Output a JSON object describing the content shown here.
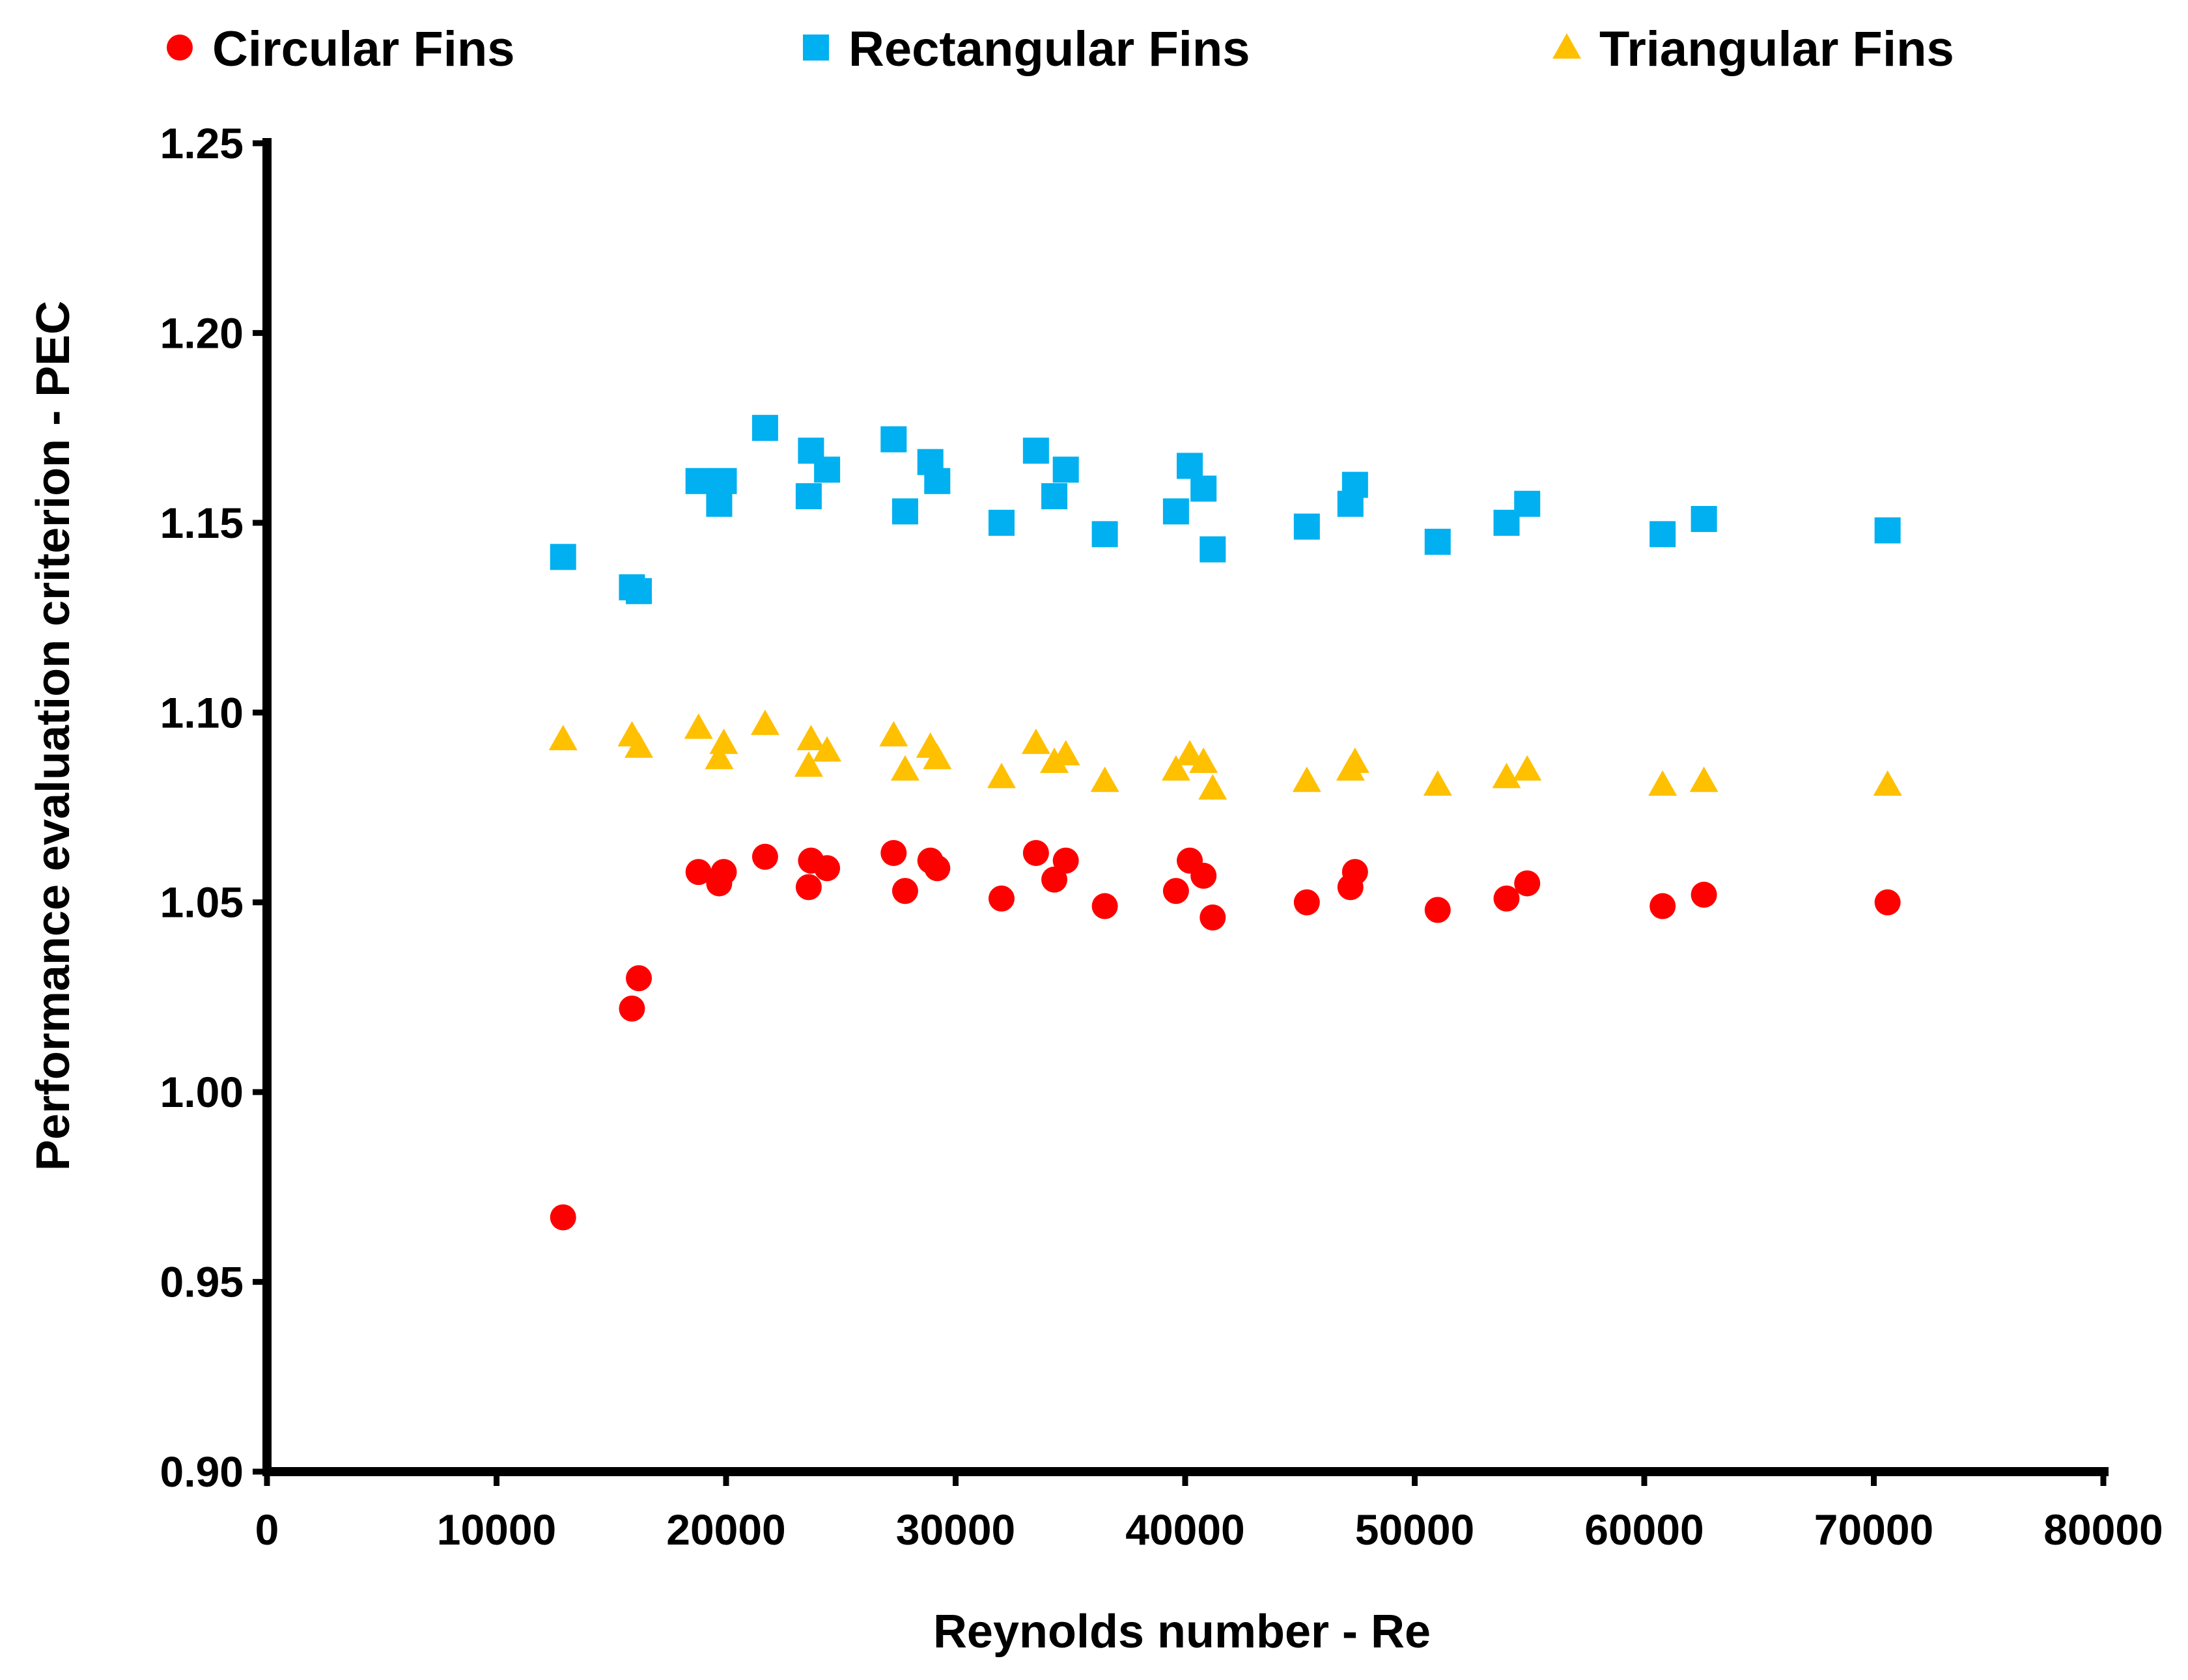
{
  "chart_data": {
    "type": "scatter",
    "title": "",
    "xlabel": "Reynolds number - Re",
    "ylabel": "Performance evaluation criterion - PEC",
    "xlim": [
      0,
      80000
    ],
    "ylim": [
      0.9,
      1.25
    ],
    "xticks": [
      0,
      10000,
      20000,
      30000,
      40000,
      50000,
      60000,
      70000,
      80000
    ],
    "xtick_labels": [
      "0",
      "10000",
      "20000",
      "30000",
      "40000",
      "50000",
      "60000",
      "70000",
      "80000"
    ],
    "yticks": [
      0.9,
      0.95,
      1.0,
      1.05,
      1.1,
      1.15,
      1.2,
      1.25
    ],
    "ytick_labels": [
      "0.90",
      "0.95",
      "1.00",
      "1.05",
      "1.10",
      "1.15",
      "1.20",
      "1.25"
    ],
    "grid": false,
    "legend_position": "top",
    "series": [
      {
        "name": "Circular Fins",
        "marker": "circle",
        "color": "#ff0000",
        "x": [
          12900,
          15900,
          16200,
          18800,
          19700,
          19900,
          21700,
          23600,
          23700,
          24400,
          27300,
          27800,
          28900,
          29200,
          32000,
          33500,
          34300,
          34800,
          36500,
          39600,
          40200,
          40800,
          41200,
          45300,
          47200,
          47400,
          51000,
          54000,
          54900,
          60800,
          62600,
          70600
        ],
        "y": [
          0.967,
          1.022,
          1.03,
          1.058,
          1.055,
          1.058,
          1.062,
          1.054,
          1.061,
          1.059,
          1.063,
          1.053,
          1.061,
          1.059,
          1.051,
          1.063,
          1.056,
          1.061,
          1.049,
          1.053,
          1.061,
          1.057,
          1.046,
          1.05,
          1.054,
          1.058,
          1.048,
          1.051,
          1.055,
          1.049,
          1.052,
          1.05
        ]
      },
      {
        "name": "Rectangular Fins",
        "marker": "square",
        "color": "#00b0f0",
        "x": [
          12900,
          15900,
          16200,
          18800,
          19700,
          19900,
          21700,
          23600,
          23700,
          24400,
          27300,
          27800,
          28900,
          29200,
          32000,
          33500,
          34300,
          34800,
          36500,
          39600,
          40200,
          40800,
          41200,
          45300,
          47200,
          47400,
          51000,
          54000,
          54900,
          60800,
          62600,
          70600
        ],
        "y": [
          1.141,
          1.133,
          1.132,
          1.161,
          1.155,
          1.161,
          1.175,
          1.157,
          1.169,
          1.164,
          1.172,
          1.153,
          1.166,
          1.161,
          1.15,
          1.169,
          1.157,
          1.164,
          1.147,
          1.153,
          1.165,
          1.159,
          1.143,
          1.149,
          1.155,
          1.16,
          1.145,
          1.15,
          1.155,
          1.147,
          1.151,
          1.148
        ]
      },
      {
        "name": "Triangular Fins",
        "marker": "triangle",
        "color": "#ffc000",
        "x": [
          12900,
          15900,
          16200,
          18800,
          19700,
          19900,
          21700,
          23600,
          23700,
          24400,
          27300,
          27800,
          28900,
          29200,
          32000,
          33500,
          34300,
          34800,
          36500,
          39600,
          40200,
          40800,
          41200,
          45300,
          47200,
          47400,
          51000,
          54000,
          54900,
          60800,
          62600,
          70600
        ],
        "y": [
          1.093,
          1.094,
          1.091,
          1.096,
          1.088,
          1.092,
          1.097,
          1.086,
          1.093,
          1.09,
          1.094,
          1.085,
          1.091,
          1.088,
          1.083,
          1.092,
          1.087,
          1.089,
          1.082,
          1.085,
          1.089,
          1.087,
          1.08,
          1.082,
          1.085,
          1.087,
          1.081,
          1.083,
          1.085,
          1.081,
          1.082,
          1.081
        ]
      }
    ]
  }
}
